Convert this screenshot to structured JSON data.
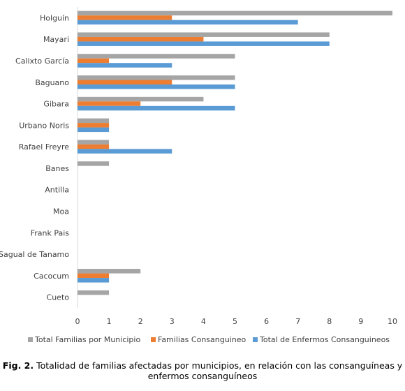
{
  "colors": {
    "total_familias": "#A5A5A5",
    "familias_consanguineo": "#ED7D31",
    "total_enfermos": "#5B9BD5",
    "axis": "#D9D9D9",
    "label": "#404040"
  },
  "chart_data": {
    "type": "bar",
    "orientation": "horizontal",
    "categories": [
      "Holguín",
      "Mayari",
      "Calixto García",
      "Baguano",
      "Gibara",
      "Urbano Noris",
      "Rafael Freyre",
      "Banes",
      "Antilla",
      "Moa",
      "Frank Pais",
      "Sagual de Tanamo",
      "Cacocum",
      "Cueto"
    ],
    "series": [
      {
        "name": "Total Familias por Municipio",
        "color_key": "total_familias",
        "values": [
          10,
          8,
          5,
          5,
          4,
          1,
          1,
          1,
          0,
          0,
          0,
          0,
          2,
          1
        ]
      },
      {
        "name": "Familias Consanguineo",
        "color_key": "familias_consanguineo",
        "values": [
          3,
          4,
          1,
          3,
          2,
          1,
          1,
          0,
          0,
          0,
          0,
          0,
          1,
          0
        ]
      },
      {
        "name": "Total de Enfermos Consanguineos",
        "color_key": "total_enfermos",
        "values": [
          7,
          8,
          3,
          5,
          5,
          1,
          3,
          0,
          0,
          0,
          0,
          0,
          1,
          0
        ]
      }
    ],
    "xlim": [
      0,
      10
    ],
    "xticks": [
      0,
      1,
      2,
      3,
      4,
      5,
      6,
      7,
      8,
      9,
      10
    ],
    "legend_position": "bottom",
    "grid": false
  },
  "caption": {
    "label": "Fig. 2.",
    "text": " Totalidad de familias afectadas por municipios, en relación con las consanguíneas y enfermos consanguíneos"
  }
}
